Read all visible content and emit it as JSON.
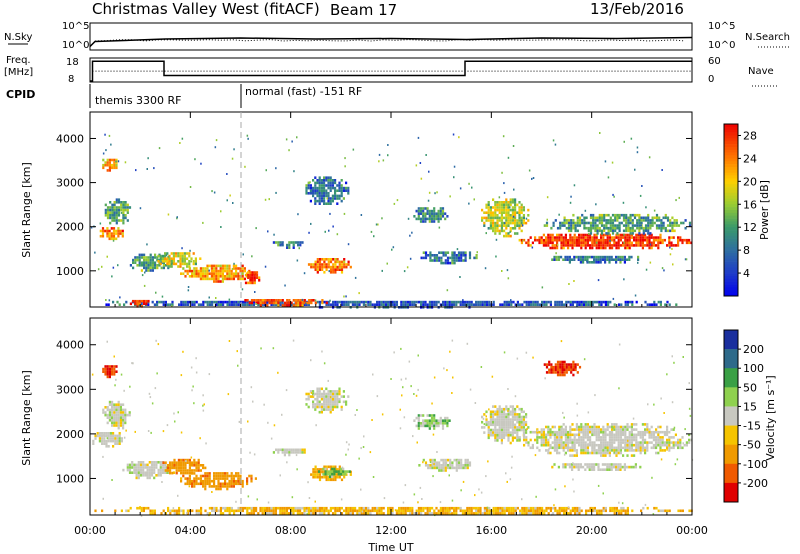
{
  "header": {
    "station": "Christmas Valley West (fitACF)",
    "beam": "Beam 17",
    "date": "13/Feb/2016"
  },
  "strip_labels": {
    "nsky": "N.Sky",
    "nsearch": "N.Search",
    "freq": "Freq.",
    "freq_unit": "[MHz]",
    "nave": "Nave",
    "cpid": "CPID",
    "nsky_tick_hi": "10^5",
    "nsky_tick_lo": "10^0",
    "freq_tick_hi": "18",
    "freq_tick_lo": "8",
    "nave_tick_hi": "60",
    "nave_tick_lo": "0"
  },
  "cpid_segments": [
    {
      "label": "themis 3300 RF",
      "start_hour": 0
    },
    {
      "label": "normal (fast) -151 RF",
      "start_hour": 6
    }
  ],
  "chart_data": [
    {
      "type": "line",
      "name": "N.Sky / N.Search",
      "x_range": [
        0,
        24
      ],
      "ylim_log10": [
        0,
        5
      ],
      "x": [
        0,
        0.2,
        3,
        6,
        9,
        12,
        15,
        18,
        21,
        24
      ],
      "y_log10": [
        0.5,
        1.5,
        2.0,
        2.2,
        2.0,
        2.1,
        1.9,
        2.2,
        2.1,
        2.3
      ]
    },
    {
      "type": "line",
      "name": "Freq. / Nave",
      "x_range": [
        0,
        24
      ],
      "ylim": [
        8,
        18
      ],
      "freq_steps": [
        {
          "x0": 0,
          "x1": 0.1,
          "freq": 8
        },
        {
          "x0": 0.1,
          "x1": 2.95,
          "freq": 17
        },
        {
          "x0": 2.95,
          "x1": 14.95,
          "freq": 10.5
        },
        {
          "x0": 14.95,
          "x1": 24,
          "freq": 17
        }
      ],
      "nave_level": 12.5
    },
    {
      "type": "heatmap",
      "name": "Power",
      "title": "",
      "xlabel": "Time UT",
      "ylabel": "Slant Range [km]",
      "x_range": [
        0,
        24
      ],
      "ylim": [
        180,
        4600
      ],
      "xticks": [
        "00:00",
        "04:00",
        "08:00",
        "12:00",
        "16:00",
        "20:00",
        "00:00"
      ],
      "yticks": [
        1000,
        2000,
        3000,
        4000
      ],
      "colorbar": {
        "label": "Power [dB]",
        "ticks": [
          4,
          8,
          12,
          16,
          20,
          24,
          28
        ],
        "range": [
          0,
          30
        ]
      },
      "blobs": [
        {
          "t0": 0.3,
          "t1": 1.3,
          "r0": 1700,
          "r1": 2050,
          "v": 24
        },
        {
          "t0": 0.5,
          "t1": 1.6,
          "r0": 2050,
          "r1": 2700,
          "v": 12
        },
        {
          "t0": 0.4,
          "t1": 1.1,
          "r0": 3300,
          "r1": 3600,
          "v": 22
        },
        {
          "t0": 1.5,
          "t1": 3.3,
          "r0": 1000,
          "r1": 1450,
          "v": 12
        },
        {
          "t0": 2.6,
          "t1": 4.4,
          "r0": 1100,
          "r1": 1480,
          "v": 18
        },
        {
          "t0": 3.5,
          "t1": 6.6,
          "r0": 780,
          "r1": 1200,
          "v": 22
        },
        {
          "t0": 6.0,
          "t1": 6.8,
          "r0": 700,
          "r1": 1050,
          "v": 27
        },
        {
          "t0": 7.2,
          "t1": 8.6,
          "r0": 1550,
          "r1": 1730,
          "v": 10
        },
        {
          "t0": 8.6,
          "t1": 10.4,
          "r0": 950,
          "r1": 1350,
          "v": 24
        },
        {
          "t0": 8.5,
          "t1": 10.3,
          "r0": 2500,
          "r1": 3200,
          "v": 8
        },
        {
          "t0": 12.8,
          "t1": 14.3,
          "r0": 2100,
          "r1": 2500,
          "v": 10
        },
        {
          "t0": 13.0,
          "t1": 15.4,
          "r0": 1200,
          "r1": 1500,
          "v": 8
        },
        {
          "t0": 15.5,
          "t1": 17.5,
          "r0": 1800,
          "r1": 2700,
          "v": 17
        },
        {
          "t0": 17.0,
          "t1": 24.0,
          "r0": 1500,
          "r1": 1900,
          "v": 27
        },
        {
          "t0": 18.0,
          "t1": 24.0,
          "r0": 1850,
          "r1": 2350,
          "v": 12
        },
        {
          "t0": 18.3,
          "t1": 22.0,
          "r0": 1200,
          "r1": 1400,
          "v": 8
        },
        {
          "t0": 0.0,
          "t1": 24.0,
          "r0": 200,
          "r1": 380,
          "v": 6
        },
        {
          "t0": 5.8,
          "t1": 9.5,
          "r0": 230,
          "r1": 420,
          "v": 26
        },
        {
          "t0": 1.5,
          "t1": 2.4,
          "r0": 220,
          "r1": 400,
          "v": 27
        }
      ]
    },
    {
      "type": "heatmap",
      "name": "Velocity",
      "title": "",
      "xlabel": "Time UT",
      "ylabel": "Slant Range [km]",
      "x_range": [
        0,
        24
      ],
      "ylim": [
        180,
        4600
      ],
      "xticks": [
        "00:00",
        "04:00",
        "08:00",
        "12:00",
        "16:00",
        "20:00",
        "00:00"
      ],
      "yticks": [
        1000,
        2000,
        3000,
        4000
      ],
      "colorbar": {
        "label": "Velocity [m s⁻¹]",
        "ticks": [
          "200",
          "100",
          "50",
          "15",
          "-15",
          "-50",
          "-100",
          "-200"
        ]
      },
      "blobs": [
        {
          "t0": 0.0,
          "t1": 1.4,
          "r0": 1700,
          "r1": 2100,
          "v": 0
        },
        {
          "t0": 0.4,
          "t1": 1.6,
          "r0": 2100,
          "r1": 2800,
          "v": 0
        },
        {
          "t0": 0.4,
          "t1": 1.1,
          "r0": 3300,
          "r1": 3600,
          "v": -150
        },
        {
          "t0": 1.2,
          "t1": 3.4,
          "r0": 1000,
          "r1": 1450,
          "v": 0
        },
        {
          "t0": 2.8,
          "t1": 4.6,
          "r0": 1100,
          "r1": 1500,
          "v": -60
        },
        {
          "t0": 3.5,
          "t1": 6.6,
          "r0": 780,
          "r1": 1200,
          "v": -60
        },
        {
          "t0": 7.2,
          "t1": 8.6,
          "r0": 1550,
          "r1": 1730,
          "v": 0
        },
        {
          "t0": 8.6,
          "t1": 10.4,
          "r0": 950,
          "r1": 1350,
          "v": -40
        },
        {
          "t0": 9.0,
          "t1": 10.4,
          "r0": 1050,
          "r1": 1300,
          "v": 30
        },
        {
          "t0": 8.5,
          "t1": 10.3,
          "r0": 2500,
          "r1": 3100,
          "v": 0
        },
        {
          "t0": 12.8,
          "t1": 14.3,
          "r0": 2100,
          "r1": 2500,
          "v": 20
        },
        {
          "t0": 13.0,
          "t1": 15.4,
          "r0": 1200,
          "r1": 1500,
          "v": 0
        },
        {
          "t0": 15.5,
          "t1": 17.5,
          "r0": 1800,
          "r1": 2700,
          "v": 0
        },
        {
          "t0": 17.0,
          "t1": 24.0,
          "r0": 1500,
          "r1": 2300,
          "v": 0
        },
        {
          "t0": 18.3,
          "t1": 22.0,
          "r0": 1200,
          "r1": 1400,
          "v": 0
        },
        {
          "t0": 18.0,
          "t1": 19.5,
          "r0": 3300,
          "r1": 3700,
          "v": -150
        },
        {
          "t0": 0.0,
          "t1": 24.0,
          "r0": 200,
          "r1": 420,
          "v": -30
        }
      ]
    }
  ]
}
